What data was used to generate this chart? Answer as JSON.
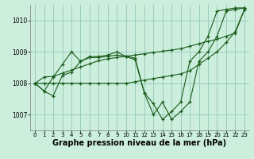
{
  "bg_color": "#cceedd",
  "grid_color": "#99ccbb",
  "line_color": "#1a5c1a",
  "marker_color": "#1a5c1a",
  "xlabel": "Graphe pression niveau de la mer (hPa)",
  "xlabel_fontsize": 7.0,
  "xlim": [
    -0.5,
    23.5
  ],
  "ylim": [
    1006.5,
    1010.5
  ],
  "yticks": [
    1007,
    1008,
    1009,
    1010
  ],
  "xticks": [
    0,
    1,
    2,
    3,
    4,
    5,
    6,
    7,
    8,
    9,
    10,
    11,
    12,
    13,
    14,
    15,
    16,
    17,
    18,
    19,
    20,
    21,
    22,
    23
  ],
  "series1": [
    1008.0,
    1007.75,
    1008.2,
    1008.6,
    1009.0,
    1008.7,
    1008.85,
    1008.85,
    1008.9,
    1009.0,
    1008.85,
    1008.75,
    1007.7,
    1007.0,
    1007.4,
    1006.85,
    1007.1,
    1007.4,
    1008.7,
    1009.0,
    1009.5,
    1010.3,
    1010.35,
    1010.4
  ],
  "series2": [
    1008.0,
    1008.2,
    1008.22,
    1008.32,
    1008.42,
    1008.52,
    1008.62,
    1008.72,
    1008.78,
    1008.82,
    1008.86,
    1008.9,
    1008.94,
    1008.98,
    1009.02,
    1009.06,
    1009.1,
    1009.18,
    1009.26,
    1009.34,
    1009.4,
    1009.5,
    1009.6,
    1010.35
  ],
  "series3": [
    1008.0,
    1007.75,
    1007.6,
    1008.25,
    1008.35,
    1008.7,
    1008.82,
    1008.82,
    1008.86,
    1008.9,
    1008.86,
    1008.8,
    1007.7,
    1007.35,
    1006.85,
    1007.1,
    1007.4,
    1008.7,
    1009.0,
    1009.5,
    1010.3,
    1010.35,
    1010.4,
    1010.4
  ],
  "series4": [
    1008.0,
    1008.0,
    1008.0,
    1008.0,
    1008.0,
    1008.0,
    1008.0,
    1008.0,
    1008.0,
    1008.0,
    1008.0,
    1008.05,
    1008.1,
    1008.15,
    1008.2,
    1008.25,
    1008.3,
    1008.4,
    1008.6,
    1008.8,
    1009.0,
    1009.3,
    1009.65,
    1010.35
  ]
}
